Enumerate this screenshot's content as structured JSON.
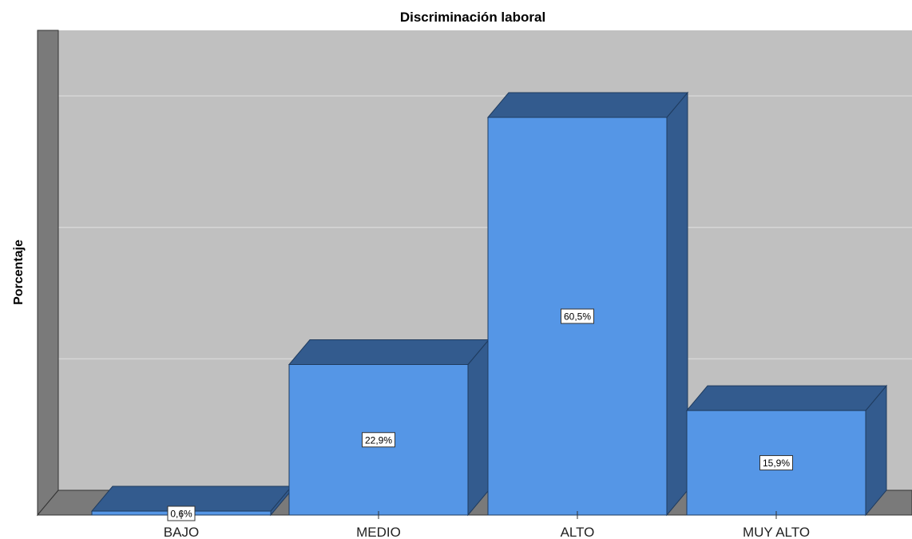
{
  "chart_data": {
    "type": "bar",
    "title": "Discriminación laboral",
    "xlabel": "",
    "ylabel": "Porcentaje",
    "categories": [
      "BAJO",
      "MEDIO",
      "ALTO",
      "MUY ALTO"
    ],
    "values": [
      0.6,
      22.9,
      60.5,
      15.9
    ],
    "data_labels": [
      "0,6%",
      "22,9%",
      "60,5%",
      "15,9%"
    ],
    "ylim": [
      0,
      70
    ],
    "grid": true,
    "legend": "none",
    "style": "3d",
    "colors": {
      "bar_front": "#5596e6",
      "bar_top": "#335b8e",
      "bar_side": "#335b8e",
      "wall": "#c0c0c0",
      "wall_side": "#7a7a7a",
      "floor": "#7a7a7a",
      "gridline": "#d6d6d6"
    }
  }
}
